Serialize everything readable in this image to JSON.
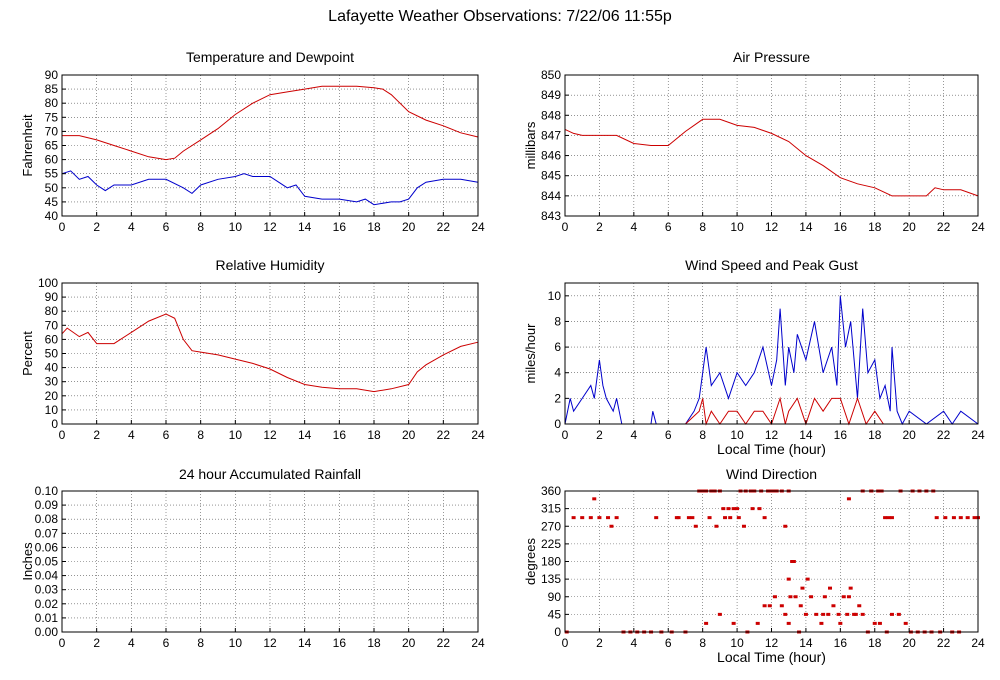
{
  "page": {
    "title": "Lafayette Weather Observations: 7/22/06 11:55p"
  },
  "chart_data": [
    {
      "id": "temp",
      "type": "line",
      "title": "Temperature and Dewpoint",
      "ylabel": "Fahrenheit",
      "xlabel": "",
      "xlim": [
        0,
        24
      ],
      "ylim": [
        40,
        90
      ],
      "xticks": [
        0,
        2,
        4,
        6,
        8,
        10,
        12,
        14,
        16,
        18,
        20,
        22,
        24
      ],
      "yticks": [
        40,
        45,
        50,
        55,
        60,
        65,
        70,
        75,
        80,
        85,
        90
      ],
      "grid": true,
      "series": [
        {
          "color": "#cc0000",
          "x": [
            0,
            1,
            2,
            3,
            4,
            5,
            6,
            6.5,
            7,
            8,
            9,
            10,
            11,
            12,
            13,
            14,
            15,
            16,
            17,
            18,
            18.5,
            19,
            20,
            21,
            22,
            23,
            24
          ],
          "y": [
            68.5,
            68.5,
            67,
            65,
            63,
            61,
            60,
            60.5,
            63,
            67,
            71,
            76,
            80,
            83,
            84,
            85,
            86,
            86,
            86,
            85.5,
            85,
            83,
            77,
            74,
            72,
            69.5,
            68
          ]
        },
        {
          "color": "#0000cc",
          "x": [
            0,
            0.5,
            1,
            1.5,
            2,
            2.5,
            3,
            4,
            5,
            6,
            7,
            7.5,
            8,
            9,
            10,
            10.5,
            11,
            12,
            12.5,
            13,
            13.5,
            14,
            15,
            16,
            17,
            17.5,
            18,
            19,
            19.5,
            20,
            20.5,
            21,
            22,
            23,
            24
          ],
          "y": [
            55,
            56,
            53,
            54,
            51,
            49,
            51,
            51,
            53,
            53,
            50,
            48,
            51,
            53,
            54,
            55,
            54,
            54,
            52,
            50,
            51,
            47,
            46,
            46,
            45,
            46,
            44,
            45,
            45,
            46,
            50,
            52,
            53,
            53,
            52
          ]
        }
      ]
    },
    {
      "id": "pressure",
      "type": "line",
      "title": "Air Pressure",
      "ylabel": "millibars",
      "xlabel": "",
      "xlim": [
        0,
        24
      ],
      "ylim": [
        843,
        850
      ],
      "xticks": [
        0,
        2,
        4,
        6,
        8,
        10,
        12,
        14,
        16,
        18,
        20,
        22,
        24
      ],
      "yticks": [
        843,
        844,
        845,
        846,
        847,
        848,
        849,
        850
      ],
      "grid": true,
      "series": [
        {
          "color": "#cc0000",
          "x": [
            0,
            0.5,
            1,
            3,
            4,
            5,
            6,
            7,
            8,
            9,
            10,
            11,
            12,
            13,
            14,
            15,
            16,
            17,
            18,
            19,
            20,
            21,
            21.5,
            22,
            23,
            24
          ],
          "y": [
            847.3,
            847.1,
            847,
            847,
            846.6,
            846.5,
            846.5,
            847.2,
            847.8,
            847.8,
            847.5,
            847.4,
            847.1,
            846.7,
            846,
            845.5,
            844.9,
            844.6,
            844.4,
            844,
            844,
            844,
            844.4,
            844.3,
            844.3,
            844
          ]
        }
      ]
    },
    {
      "id": "humidity",
      "type": "line",
      "title": "Relative Humidity",
      "ylabel": "Percent",
      "xlabel": "",
      "xlim": [
        0,
        24
      ],
      "ylim": [
        0,
        100
      ],
      "xticks": [
        0,
        2,
        4,
        6,
        8,
        10,
        12,
        14,
        16,
        18,
        20,
        22,
        24
      ],
      "yticks": [
        0,
        10,
        20,
        30,
        40,
        50,
        60,
        70,
        80,
        90,
        100
      ],
      "grid": true,
      "series": [
        {
          "color": "#cc0000",
          "x": [
            0,
            0.3,
            1,
            1.5,
            2,
            3,
            4,
            5,
            6,
            6.5,
            7,
            7.5,
            8,
            9,
            10,
            11,
            12,
            13,
            14,
            15,
            16,
            17,
            18,
            19,
            20,
            20.5,
            21,
            22,
            23,
            24
          ],
          "y": [
            64,
            68,
            62,
            65,
            57,
            57,
            65,
            73,
            78,
            75,
            60,
            52,
            51,
            49,
            46,
            43,
            39,
            33,
            28,
            26,
            25,
            25,
            23,
            25,
            28,
            37,
            42,
            49,
            55,
            58
          ]
        }
      ]
    },
    {
      "id": "wind",
      "type": "line",
      "title": "Wind Speed and Peak Gust",
      "ylabel": "miles/hour",
      "xlabel": "Local Time (hour)",
      "xlim": [
        0,
        24
      ],
      "ylim": [
        0,
        11
      ],
      "xticks": [
        0,
        2,
        4,
        6,
        8,
        10,
        12,
        14,
        16,
        18,
        20,
        22,
        24
      ],
      "yticks": [
        0,
        2,
        4,
        6,
        8,
        10
      ],
      "grid": true,
      "series": [
        {
          "color": "#0000cc",
          "x": [
            0,
            0.3,
            0.5,
            1,
            1.5,
            1.7,
            2,
            2.2,
            2.4,
            2.8,
            3,
            3.3,
            3.5,
            5,
            5.1,
            5.3,
            7,
            7.5,
            7.8,
            8,
            8.2,
            8.5,
            9,
            9.5,
            10,
            10.5,
            11,
            11.5,
            12,
            12.3,
            12.5,
            12.8,
            13,
            13.3,
            13.5,
            14,
            14.5,
            15,
            15.5,
            15.8,
            16,
            16.3,
            16.6,
            17,
            17.3,
            17.6,
            18,
            18.3,
            18.6,
            18.9,
            19,
            19.3,
            19.6,
            20,
            21,
            22,
            22.5,
            23,
            24
          ],
          "y": [
            0,
            2,
            1,
            2,
            3,
            2,
            5,
            3,
            2,
            1,
            2,
            0,
            0,
            0,
            1,
            0,
            0,
            1,
            2,
            4,
            6,
            3,
            4,
            2,
            4,
            3,
            4,
            6,
            3,
            5,
            9,
            3,
            6,
            4,
            7,
            5,
            8,
            4,
            6,
            3,
            10,
            6,
            8,
            2,
            9,
            4,
            5,
            2,
            3,
            1,
            6,
            1,
            0,
            1,
            0,
            1,
            0,
            1,
            0
          ]
        },
        {
          "color": "#cc0000",
          "x": [
            0,
            7,
            7.8,
            8,
            8.2,
            8.5,
            9,
            9.5,
            10,
            10.5,
            11,
            11.5,
            12,
            12.5,
            12.8,
            13,
            13.5,
            14,
            14.5,
            15,
            15.5,
            16,
            16.5,
            17,
            17.5,
            18,
            18.5,
            19,
            24
          ],
          "y": [
            0,
            0,
            1,
            2,
            0,
            1,
            0,
            1,
            1,
            0,
            1,
            1,
            0,
            2,
            0,
            1,
            2,
            0,
            2,
            1,
            2,
            2,
            0,
            2,
            0,
            1,
            0,
            0,
            0
          ]
        }
      ]
    },
    {
      "id": "rain",
      "type": "line",
      "title": "24 hour Accumulated Rainfall",
      "ylabel": "Inches",
      "xlabel": "",
      "xlim": [
        0,
        24
      ],
      "ylim": [
        0,
        0.1
      ],
      "xticks": [
        0,
        2,
        4,
        6,
        8,
        10,
        12,
        14,
        16,
        18,
        20,
        22,
        24
      ],
      "yticks": [
        0,
        0.01,
        0.02,
        0.03,
        0.04,
        0.05,
        0.06,
        0.07,
        0.08,
        0.09,
        0.1
      ],
      "ytick_labels": [
        "0.00",
        "0.01",
        "0.02",
        "0.03",
        "0.04",
        "0.05",
        "0.06",
        "0.07",
        "0.08",
        "0.09",
        "0.10"
      ],
      "grid": true,
      "series": [
        {
          "color": "#cc0000",
          "x": [
            0,
            24
          ],
          "y": [
            0,
            0
          ]
        }
      ]
    },
    {
      "id": "direction",
      "type": "scatter",
      "title": "Wind Direction",
      "ylabel": "degrees",
      "xlabel": "Local Time (hour)",
      "xlim": [
        0,
        24
      ],
      "ylim": [
        0,
        360
      ],
      "xticks": [
        0,
        2,
        4,
        6,
        8,
        10,
        12,
        14,
        16,
        18,
        20,
        22,
        24
      ],
      "yticks": [
        0,
        45,
        90,
        135,
        180,
        225,
        270,
        315,
        360
      ],
      "grid": true,
      "series": [
        {
          "color": "#cc0000",
          "x": [
            0.1,
            0.5,
            1.0,
            1.5,
            2.0,
            2.5,
            2.7,
            3.0,
            1.7,
            3.4,
            3.8,
            4.2,
            4.6,
            5.0,
            5.3,
            5.6,
            6.2,
            6.6,
            7.0,
            7.4,
            6.5,
            7.2,
            7.6,
            7.8,
            8.0,
            8.2,
            8.5,
            8.7,
            9.0,
            9.2,
            9.5,
            9.8,
            10.0,
            10.2,
            10.5,
            10.8,
            11.0,
            11.3,
            11.6,
            12.0,
            12.3,
            8.4,
            8.8,
            9.3,
            9.6,
            10.1,
            10.4,
            10.9,
            11.4,
            11.8,
            12.1,
            12.6,
            13.0,
            8.2,
            9.0,
            9.8,
            10.6,
            11.2,
            11.6,
            11.9,
            12.2,
            12.6,
            12.8,
            13.1,
            13.4,
            13.7,
            14.0,
            14.3,
            14.6,
            15.0,
            15.3,
            15.6,
            15.9,
            16.2,
            16.5,
            16.8,
            17.1,
            13.0,
            13.3,
            13.8,
            14.1,
            15.4,
            16.6,
            13.2,
            13.6,
            12.8,
            13.0,
            14.9,
            15.1,
            16.0,
            16.4,
            16.9,
            17.3,
            17.6,
            18.0,
            18.3,
            18.7,
            19.0,
            19.4,
            19.8,
            20.1,
            20.5,
            20.9,
            21.3,
            18.2,
            18.6,
            19.0,
            17.8,
            18.4,
            18.8,
            19.5,
            17.3,
            17.8,
            16.5,
            20.2,
            20.6,
            21.0,
            21.4,
            21.8,
            22.5,
            22.9,
            21.6,
            22.1,
            22.6,
            23.0,
            23.4,
            23.8,
            24.0
          ],
          "y": [
            0,
            292,
            292,
            292,
            292,
            292,
            270,
            292,
            340,
            0,
            0,
            0,
            0,
            0,
            292,
            0,
            0,
            292,
            0,
            292,
            292,
            292,
            270,
            360,
            360,
            360,
            360,
            360,
            360,
            315,
            315,
            315,
            315,
            360,
            360,
            360,
            360,
            315,
            292,
            360,
            360,
            292,
            270,
            292,
            292,
            292,
            270,
            315,
            360,
            360,
            360,
            360,
            360,
            22,
            45,
            22,
            0,
            22,
            67,
            67,
            90,
            67,
            45,
            90,
            90,
            67,
            45,
            90,
            45,
            45,
            45,
            67,
            45,
            90,
            90,
            45,
            67,
            22,
            180,
            112,
            135,
            112,
            112,
            180,
            0,
            270,
            135,
            22,
            90,
            22,
            45,
            45,
            45,
            0,
            22,
            22,
            0,
            45,
            45,
            22,
            0,
            0,
            0,
            0,
            360,
            292,
            292,
            360,
            360,
            292,
            360,
            360,
            360,
            340,
            360,
            360,
            360,
            360,
            0,
            0,
            0,
            292,
            292,
            292,
            292,
            292,
            292,
            292
          ]
        }
      ]
    }
  ]
}
